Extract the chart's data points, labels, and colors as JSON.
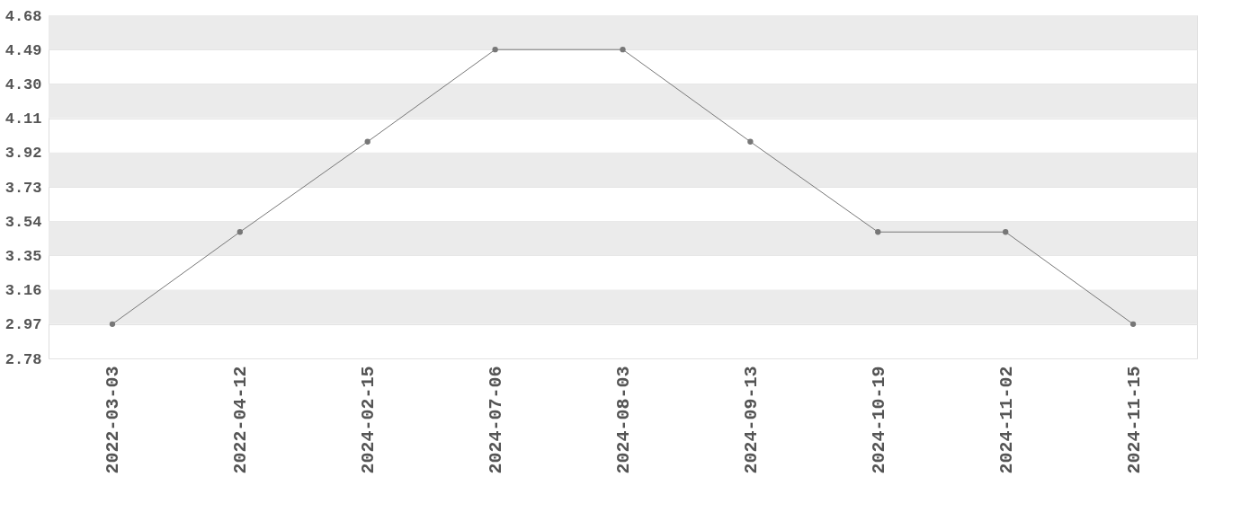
{
  "chart_data": {
    "type": "line",
    "categories": [
      "2022-03-03",
      "2022-04-12",
      "2024-02-15",
      "2024-07-06",
      "2024-08-03",
      "2024-09-13",
      "2024-10-19",
      "2024-11-02",
      "2024-11-15"
    ],
    "series": [
      {
        "color": "#777777",
        "values": [
          2.97,
          3.48,
          3.98,
          4.49,
          4.49,
          3.98,
          3.48,
          3.48,
          2.97
        ]
      }
    ],
    "ylim": [
      2.78,
      4.68
    ],
    "yticks": [
      2.78,
      2.97,
      3.16,
      3.35,
      3.54,
      3.73,
      3.92,
      4.11,
      {
        "value": 4.3,
        "label": "4.30"
      },
      4.49,
      4.68
    ],
    "grid": "y",
    "marker": "circle",
    "line_style": "solid"
  }
}
